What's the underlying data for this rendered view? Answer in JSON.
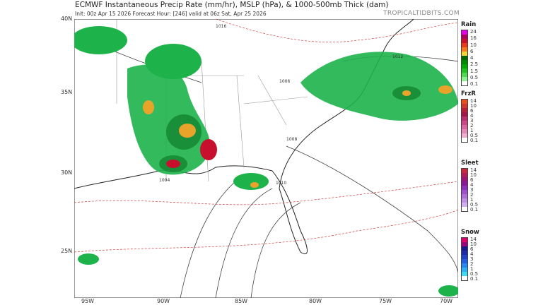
{
  "header": {
    "title": "ECMWF Instantaneous Precip Rate (mm/hr), MSLP (hPa), & 1000-500mb Thick (dam)",
    "subtitle": "Init: 00z Apr 15 2026   Forecast Hour: [246]   valid at 06z Sat, Apr 25 2026",
    "brand": "TROPICALTIDBITS.COM"
  },
  "axes": {
    "lat_labels": [
      "40N",
      "35N",
      "30N",
      "25N"
    ],
    "lon_labels": [
      "95W",
      "90W",
      "85W",
      "80W",
      "75W",
      "70W"
    ]
  },
  "isobar_labels": [
    "1012",
    "1008",
    "1010",
    "1016",
    "1006",
    "1004"
  ],
  "legend": [
    {
      "title": "Rain",
      "ticks": [
        "24",
        "16",
        "10",
        "6",
        "4",
        "2.5",
        "1.5",
        "0.5",
        "0.1"
      ],
      "colors": [
        "#e600e6",
        "#b0005a",
        "#c8102e",
        "#e83a1c",
        "#f07a1e",
        "#f5d23c",
        "#006400",
        "#008a00",
        "#00a800",
        "#20c020",
        "#50d850",
        "#90f090",
        "#ffffff"
      ]
    },
    {
      "title": "FrzR",
      "ticks": [
        "14",
        "10",
        "6",
        "4",
        "3",
        "2",
        "1",
        "0.5",
        "0.1"
      ],
      "colors": [
        "#e8501e",
        "#d03a2a",
        "#b8203a",
        "#a01848",
        "#b83070",
        "#c84888",
        "#d866a0",
        "#e488b8",
        "#f0aad0",
        "#ffffff"
      ]
    },
    {
      "title": "Sleet",
      "ticks": [
        "14",
        "10",
        "6",
        "4",
        "3",
        "2",
        "1",
        "0.5",
        "0.1"
      ],
      "colors": [
        "#c8283c",
        "#b01c58",
        "#9a1478",
        "#8a1898",
        "#9030b8",
        "#a050c8",
        "#b070d8",
        "#c090e4",
        "#d0b0f0",
        "#ffffff"
      ]
    },
    {
      "title": "Snow",
      "ticks": [
        "14",
        "10",
        "6",
        "4",
        "3",
        "2",
        "1",
        "0.5",
        "0.1"
      ],
      "colors": [
        "#e0006e",
        "#a0007a",
        "#1a1a8a",
        "#1e2aa8",
        "#2040c8",
        "#2060e0",
        "#2888f0",
        "#30b0f0",
        "#40d8f0",
        "#ffffff"
      ]
    }
  ]
}
